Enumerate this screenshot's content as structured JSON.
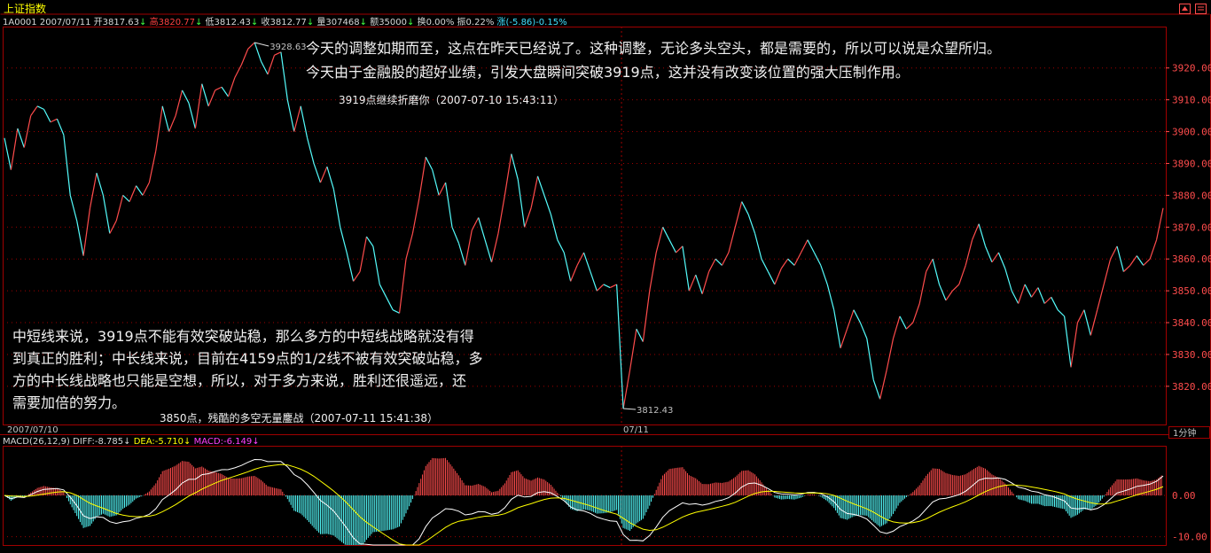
{
  "header": {
    "title": "上证指数",
    "code": "1A0001",
    "date": "2007/07/11",
    "open_label": "开",
    "open_value": "3817.63",
    "high_label": "高",
    "high_value": "3820.77",
    "low_label": "低",
    "low_value": "3812.43",
    "close_label": "收",
    "close_value": "3812.77",
    "vol_label": "量",
    "vol_value": "307468",
    "amt_label": "额",
    "amt_value": "35000",
    "turn_label": "换",
    "turn_value": "0.00%",
    "amp_label": "振",
    "amp_value": "0.22%",
    "chg_label": "涨",
    "chg_value": "(-5.86)-0.15%"
  },
  "annotations": {
    "top_line1": "今天的调整如期而至，这点在昨天已经说了。这种调整，无论多头空头，都是需要的，所以可以说是众望所归。",
    "top_line2": "今天由于金融股的超好业绩，引发大盘瞬间突破3919点，这并没有改变该位置的强大压制作用。",
    "top_caption": "3919点继续折磨你（2007-07-10 15:43:11）",
    "bottom_line1": "中短线来说，3919点不能有效突破站稳，那么多方的中短线战略就没有得",
    "bottom_line2": "到真正的胜利；中长线来说，目前在4159点的1/2线不被有效突破站稳，多",
    "bottom_line3": "方的中长线战略也只能是空想，所以，对于多方来说，胜利还很遥远，还",
    "bottom_line4": "需要加倍的努力。",
    "bottom_caption": "3850点，残酷的多空无量鏖战（2007-07-11 15:41:38）",
    "high_marker": "3928.63",
    "low_marker": "3812.43"
  },
  "macd": {
    "label": "MACD(26,12,9)",
    "diff_label": "DIFF:",
    "diff_value": "-8.785",
    "dea_label": "DEA:",
    "dea_value": "-5.710",
    "macd_label": "MACD:",
    "macd_value": "-6.149",
    "ticks": [
      "0.00",
      "-10.00"
    ],
    "ylim": [
      -12,
      12
    ]
  },
  "period_label": "1分钟",
  "colors": {
    "up": "#ff4c4c",
    "down": "#54fcfc",
    "diff_line": "#ffffff",
    "dea_line": "#ffff00",
    "grid": "#a00000",
    "text": "#c0c0c0"
  },
  "chart_data": {
    "type": "line",
    "title": "上证指数",
    "x_ticks": [
      "2007/07/10",
      "07/11"
    ],
    "y_ticks": [
      3920,
      3910,
      3900,
      3890,
      3880,
      3870,
      3860,
      3850,
      3840,
      3830,
      3820
    ],
    "ylim": [
      3808,
      3933
    ],
    "grid": true,
    "series": [
      {
        "name": "上证指数",
        "values": [
          3898,
          3888,
          3901,
          3895,
          3905,
          3908,
          3907,
          3903,
          3904,
          3899,
          3880,
          3872,
          3861,
          3876,
          3887,
          3880,
          3868,
          3872,
          3880,
          3878,
          3883,
          3880,
          3884,
          3894,
          3908,
          3900,
          3905,
          3913,
          3909,
          3901,
          3915,
          3908,
          3913,
          3914,
          3911,
          3917,
          3921,
          3926,
          3928,
          3922,
          3918,
          3924,
          3925,
          3910,
          3900,
          3908,
          3898,
          3890,
          3884,
          3889,
          3882,
          3870,
          3862,
          3853,
          3856,
          3867,
          3864,
          3852,
          3848,
          3844,
          3843,
          3860,
          3868,
          3879,
          3892,
          3888,
          3880,
          3884,
          3870,
          3865,
          3858,
          3869,
          3873,
          3866,
          3859,
          3868,
          3880,
          3893,
          3885,
          3870,
          3876,
          3886,
          3880,
          3874,
          3866,
          3862,
          3853,
          3858,
          3862,
          3856,
          3850,
          3852,
          3851,
          3852,
          3813,
          3825,
          3838,
          3834,
          3850,
          3862,
          3870,
          3866,
          3862,
          3864,
          3850,
          3855,
          3849,
          3856,
          3860,
          3858,
          3862,
          3870,
          3878,
          3874,
          3868,
          3860,
          3856,
          3852,
          3857,
          3860,
          3858,
          3862,
          3866,
          3862,
          3858,
          3852,
          3844,
          3832,
          3838,
          3844,
          3840,
          3835,
          3822,
          3816,
          3825,
          3835,
          3842,
          3838,
          3840,
          3846,
          3856,
          3860,
          3852,
          3847,
          3850,
          3852,
          3858,
          3866,
          3871,
          3864,
          3859,
          3862,
          3857,
          3850,
          3846,
          3852,
          3848,
          3851,
          3846,
          3848,
          3844,
          3842,
          3826,
          3840,
          3844,
          3836,
          3844,
          3852,
          3860,
          3864,
          3856,
          3858,
          3861,
          3858,
          3860,
          3866,
          3876
        ]
      }
    ]
  }
}
